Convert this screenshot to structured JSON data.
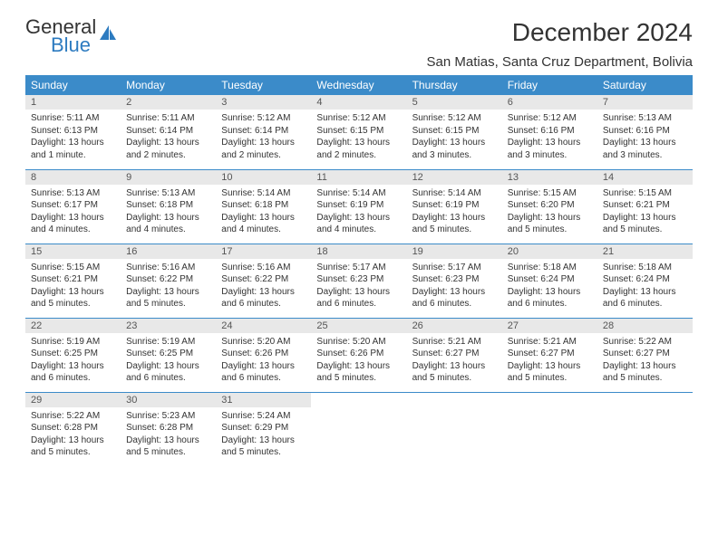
{
  "brand": {
    "top": "General",
    "bottom": "Blue"
  },
  "colors": {
    "header_bg": "#3b8bc9",
    "header_text": "#ffffff",
    "daynum_bg": "#e8e8e8",
    "rule": "#3b8bc9",
    "logo_gray": "#6b6b6b",
    "logo_blue": "#2d7bc0"
  },
  "title": "December 2024",
  "location": "San Matias, Santa Cruz Department, Bolivia",
  "weekdays": [
    "Sunday",
    "Monday",
    "Tuesday",
    "Wednesday",
    "Thursday",
    "Friday",
    "Saturday"
  ],
  "weeks": [
    [
      {
        "n": "1",
        "sr": "5:11 AM",
        "ss": "6:13 PM",
        "dl": "13 hours and 1 minute."
      },
      {
        "n": "2",
        "sr": "5:11 AM",
        "ss": "6:14 PM",
        "dl": "13 hours and 2 minutes."
      },
      {
        "n": "3",
        "sr": "5:12 AM",
        "ss": "6:14 PM",
        "dl": "13 hours and 2 minutes."
      },
      {
        "n": "4",
        "sr": "5:12 AM",
        "ss": "6:15 PM",
        "dl": "13 hours and 2 minutes."
      },
      {
        "n": "5",
        "sr": "5:12 AM",
        "ss": "6:15 PM",
        "dl": "13 hours and 3 minutes."
      },
      {
        "n": "6",
        "sr": "5:12 AM",
        "ss": "6:16 PM",
        "dl": "13 hours and 3 minutes."
      },
      {
        "n": "7",
        "sr": "5:13 AM",
        "ss": "6:16 PM",
        "dl": "13 hours and 3 minutes."
      }
    ],
    [
      {
        "n": "8",
        "sr": "5:13 AM",
        "ss": "6:17 PM",
        "dl": "13 hours and 4 minutes."
      },
      {
        "n": "9",
        "sr": "5:13 AM",
        "ss": "6:18 PM",
        "dl": "13 hours and 4 minutes."
      },
      {
        "n": "10",
        "sr": "5:14 AM",
        "ss": "6:18 PM",
        "dl": "13 hours and 4 minutes."
      },
      {
        "n": "11",
        "sr": "5:14 AM",
        "ss": "6:19 PM",
        "dl": "13 hours and 4 minutes."
      },
      {
        "n": "12",
        "sr": "5:14 AM",
        "ss": "6:19 PM",
        "dl": "13 hours and 5 minutes."
      },
      {
        "n": "13",
        "sr": "5:15 AM",
        "ss": "6:20 PM",
        "dl": "13 hours and 5 minutes."
      },
      {
        "n": "14",
        "sr": "5:15 AM",
        "ss": "6:21 PM",
        "dl": "13 hours and 5 minutes."
      }
    ],
    [
      {
        "n": "15",
        "sr": "5:15 AM",
        "ss": "6:21 PM",
        "dl": "13 hours and 5 minutes."
      },
      {
        "n": "16",
        "sr": "5:16 AM",
        "ss": "6:22 PM",
        "dl": "13 hours and 5 minutes."
      },
      {
        "n": "17",
        "sr": "5:16 AM",
        "ss": "6:22 PM",
        "dl": "13 hours and 6 minutes."
      },
      {
        "n": "18",
        "sr": "5:17 AM",
        "ss": "6:23 PM",
        "dl": "13 hours and 6 minutes."
      },
      {
        "n": "19",
        "sr": "5:17 AM",
        "ss": "6:23 PM",
        "dl": "13 hours and 6 minutes."
      },
      {
        "n": "20",
        "sr": "5:18 AM",
        "ss": "6:24 PM",
        "dl": "13 hours and 6 minutes."
      },
      {
        "n": "21",
        "sr": "5:18 AM",
        "ss": "6:24 PM",
        "dl": "13 hours and 6 minutes."
      }
    ],
    [
      {
        "n": "22",
        "sr": "5:19 AM",
        "ss": "6:25 PM",
        "dl": "13 hours and 6 minutes."
      },
      {
        "n": "23",
        "sr": "5:19 AM",
        "ss": "6:25 PM",
        "dl": "13 hours and 6 minutes."
      },
      {
        "n": "24",
        "sr": "5:20 AM",
        "ss": "6:26 PM",
        "dl": "13 hours and 6 minutes."
      },
      {
        "n": "25",
        "sr": "5:20 AM",
        "ss": "6:26 PM",
        "dl": "13 hours and 5 minutes."
      },
      {
        "n": "26",
        "sr": "5:21 AM",
        "ss": "6:27 PM",
        "dl": "13 hours and 5 minutes."
      },
      {
        "n": "27",
        "sr": "5:21 AM",
        "ss": "6:27 PM",
        "dl": "13 hours and 5 minutes."
      },
      {
        "n": "28",
        "sr": "5:22 AM",
        "ss": "6:27 PM",
        "dl": "13 hours and 5 minutes."
      }
    ],
    [
      {
        "n": "29",
        "sr": "5:22 AM",
        "ss": "6:28 PM",
        "dl": "13 hours and 5 minutes."
      },
      {
        "n": "30",
        "sr": "5:23 AM",
        "ss": "6:28 PM",
        "dl": "13 hours and 5 minutes."
      },
      {
        "n": "31",
        "sr": "5:24 AM",
        "ss": "6:29 PM",
        "dl": "13 hours and 5 minutes."
      },
      null,
      null,
      null,
      null
    ]
  ],
  "labels": {
    "sunrise": "Sunrise: ",
    "sunset": "Sunset: ",
    "daylight": "Daylight: "
  }
}
